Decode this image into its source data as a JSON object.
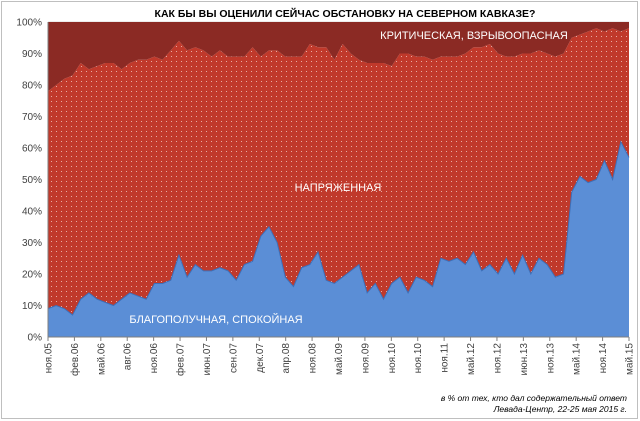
{
  "chart_data": {
    "type": "area",
    "stacked": "percent",
    "title": "КАК БЫ ВЫ ОЦЕНИЛИ СЕЙЧАС ОБСТАНОВКУ НА СЕВЕРНОМ КАВКАЗЕ?",
    "ylim": [
      0,
      100
    ],
    "y_ticks": [
      "0%",
      "10%",
      "20%",
      "30%",
      "40%",
      "50%",
      "60%",
      "70%",
      "80%",
      "90%",
      "100%"
    ],
    "x_tick_labels": [
      "ноя.05",
      "фев.06",
      "май.06",
      "авг.06",
      "ноя.06",
      "фев.07",
      "июн.07",
      "сен.07",
      "дек.07",
      "апр.08",
      "ноя.08",
      "май.09",
      "ноя.09",
      "ноя.10",
      "ноя.10",
      "ноя.11",
      "май.12",
      "ноя.12",
      "июн.13",
      "ноя.13",
      "май.14",
      "ноя.14",
      "май.15"
    ],
    "grid": true,
    "series": [
      {
        "name": "БЛАГОПОЛУЧНАЯ, СПОКОЙНАЯ",
        "color": "#5b8ed6",
        "values": [
          9,
          10,
          9,
          7,
          12,
          14,
          12,
          11,
          10,
          12,
          14,
          13,
          12,
          17,
          17,
          18,
          26,
          19,
          23,
          21,
          21,
          22,
          21,
          18,
          23,
          24,
          32,
          35,
          30,
          19,
          16,
          22,
          23,
          27,
          18,
          17,
          19,
          21,
          23,
          14,
          17,
          12,
          17,
          19,
          14,
          19,
          18,
          16,
          25,
          24,
          25,
          23,
          27,
          21,
          23,
          20,
          25,
          20,
          26,
          20,
          25,
          23,
          19,
          20,
          46,
          51,
          49,
          50,
          56,
          50,
          62,
          57
        ]
      },
      {
        "name": "НАПРЯЖЕННАЯ",
        "color": "#c0392b",
        "values": [
          69,
          70,
          73,
          76,
          75,
          71,
          74,
          76,
          77,
          73,
          73,
          75,
          76,
          72,
          71,
          73,
          68,
          72,
          69,
          70,
          68,
          69,
          68,
          71,
          66,
          68,
          57,
          56,
          61,
          70,
          73,
          67,
          70,
          65,
          74,
          71,
          74,
          69,
          65,
          73,
          70,
          75,
          69,
          71,
          76,
          70,
          71,
          72,
          64,
          65,
          64,
          67,
          65,
          71,
          70,
          70,
          64,
          69,
          64,
          70,
          66,
          67,
          70,
          70,
          49,
          45,
          48,
          48,
          41,
          48,
          35,
          41
        ]
      },
      {
        "name": "КРИТИЧЕСКАЯ, ВЗРЫВООПАСНАЯ",
        "color": "#8b2a24",
        "values": [
          22,
          20,
          18,
          17,
          13,
          15,
          14,
          13,
          13,
          15,
          13,
          12,
          12,
          11,
          12,
          9,
          6,
          9,
          8,
          9,
          11,
          9,
          11,
          11,
          11,
          8,
          11,
          9,
          9,
          11,
          11,
          11,
          7,
          8,
          8,
          12,
          7,
          10,
          12,
          13,
          13,
          13,
          14,
          10,
          10,
          11,
          11,
          12,
          11,
          11,
          11,
          10,
          8,
          8,
          7,
          10,
          11,
          11,
          10,
          10,
          9,
          10,
          11,
          10,
          5,
          4,
          3,
          2,
          3,
          2,
          3,
          2
        ]
      }
    ]
  },
  "band_labels": {
    "low": "БЛАГОПОЛУЧНАЯ, СПОКОЙНАЯ",
    "mid": "НАПРЯЖЕННАЯ",
    "high": "КРИТИЧЕСКАЯ, ВЗРЫВООПАСНАЯ"
  },
  "footnote": {
    "line1": "в % от тех, кто дал содержательный ответ",
    "line2": "Левада-Центр, 22-25 мая 2015 г."
  }
}
